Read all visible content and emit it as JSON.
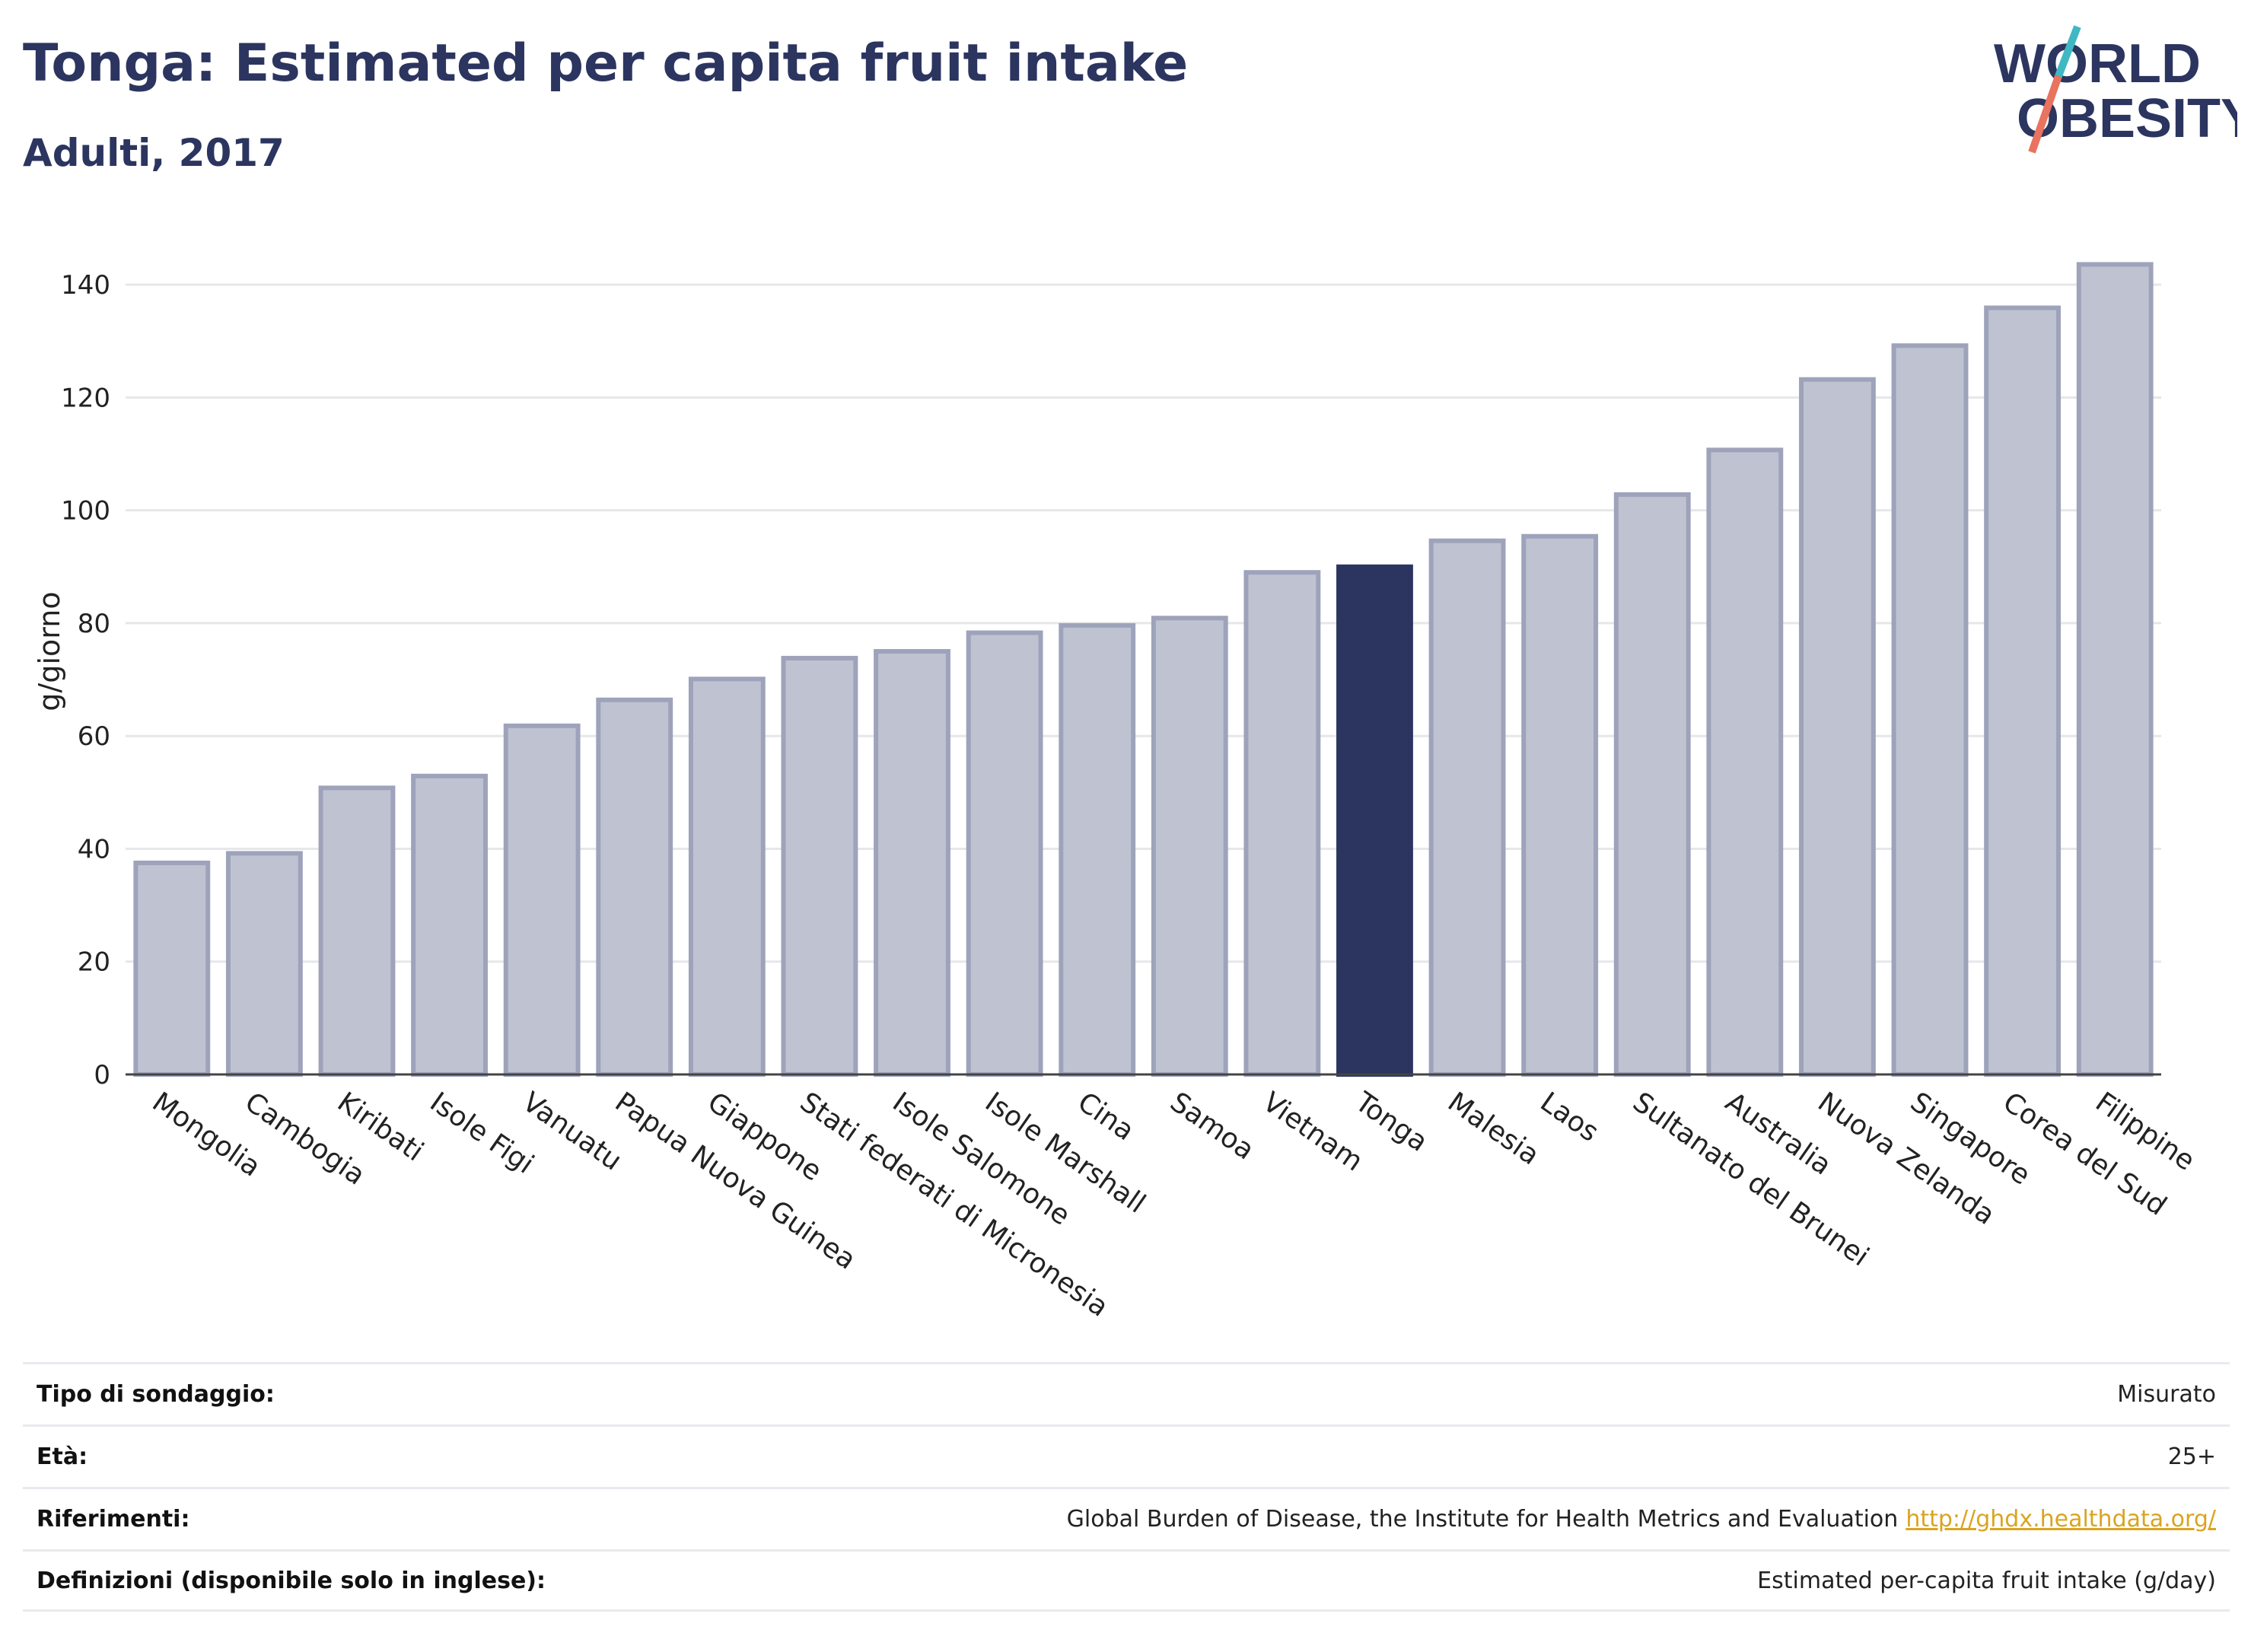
{
  "header": {
    "title": "Tonga: Estimated per capita fruit intake",
    "subtitle": "Adulti, 2017"
  },
  "logo": {
    "line1": "WORLD",
    "line2": "OBESITY"
  },
  "chart_data": {
    "type": "bar",
    "ylabel": "g/giorno",
    "xlabel": "",
    "ylim": [
      0,
      150
    ],
    "yticks": [
      0,
      20,
      40,
      60,
      80,
      100,
      120,
      140
    ],
    "grid": true,
    "highlight": "Tonga",
    "colors": {
      "bar": "#bfc2d0",
      "bar_border": "#9ea3bb",
      "highlight": "#2b355f",
      "grid": "#e6e7eb"
    },
    "categories": [
      "Mongolia",
      "Cambogia",
      "Kiribati",
      "Isole Figi",
      "Vanuatu",
      "Papua Nuova Guinea",
      "Giappone",
      "Stati federati di Micronesia",
      "Isole Salomone",
      "Isole Marshall",
      "Cina",
      "Samoa",
      "Vietnam",
      "Tonga",
      "Malesia",
      "Laos",
      "Sultanato del Brunei",
      "Australia",
      "Nuova Zelanda",
      "Singapore",
      "Corea del Sud",
      "Filippine"
    ],
    "values": [
      37.5,
      39.2,
      50.8,
      52.9,
      61.8,
      66.4,
      70.1,
      73.8,
      75.0,
      78.3,
      79.6,
      80.9,
      89.0,
      90.0,
      94.6,
      95.4,
      102.8,
      110.7,
      123.2,
      129.2,
      135.9,
      143.6
    ]
  },
  "meta": {
    "survey_label": "Tipo di sondaggio:",
    "survey_value": "Misurato",
    "age_label": "Età:",
    "age_value": "25+",
    "ref_label": "Riferimenti:",
    "ref_value": "Global Burden of Disease, the Institute for Health Metrics and Evaluation",
    "ref_link": "http://ghdx.healthdata.org/",
    "def_label": "Definizioni (disponibile solo in inglese):",
    "def_value": "Estimated per-capita fruit intake (g/day)"
  }
}
